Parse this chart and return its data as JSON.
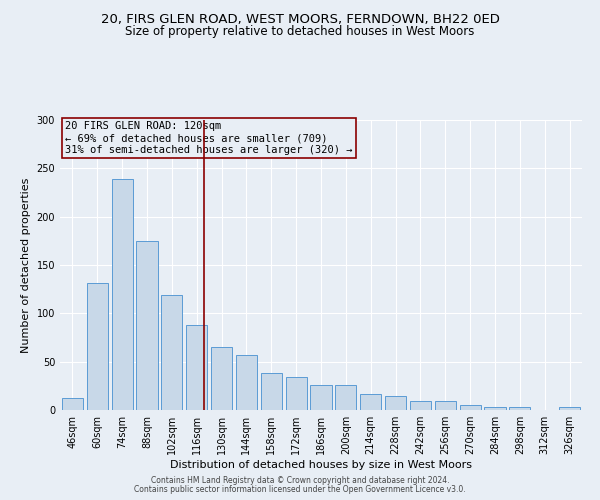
{
  "title": "20, FIRS GLEN ROAD, WEST MOORS, FERNDOWN, BH22 0ED",
  "subtitle": "Size of property relative to detached houses in West Moors",
  "xlabel": "Distribution of detached houses by size in West Moors",
  "ylabel": "Number of detached properties",
  "bar_labels": [
    "46sqm",
    "60sqm",
    "74sqm",
    "88sqm",
    "102sqm",
    "116sqm",
    "130sqm",
    "144sqm",
    "158sqm",
    "172sqm",
    "186sqm",
    "200sqm",
    "214sqm",
    "228sqm",
    "242sqm",
    "256sqm",
    "270sqm",
    "284sqm",
    "298sqm",
    "312sqm",
    "326sqm"
  ],
  "bar_values": [
    12,
    131,
    239,
    175,
    119,
    88,
    65,
    57,
    38,
    34,
    26,
    26,
    17,
    15,
    9,
    9,
    5,
    3,
    3,
    0,
    3
  ],
  "bar_color": "#c8d8e8",
  "bar_edge_color": "#5b9bd5",
  "vline_color": "#8b0000",
  "annotation_text": "20 FIRS GLEN ROAD: 120sqm\n← 69% of detached houses are smaller (709)\n31% of semi-detached houses are larger (320) →",
  "annotation_box_color": "#8b0000",
  "ylim": [
    0,
    300
  ],
  "background_color": "#e8eef5",
  "footer_line1": "Contains HM Land Registry data © Crown copyright and database right 2024.",
  "footer_line2": "Contains public sector information licensed under the Open Government Licence v3.0.",
  "title_fontsize": 9.5,
  "subtitle_fontsize": 8.5,
  "tick_fontsize": 7,
  "ylabel_fontsize": 8,
  "xlabel_fontsize": 8,
  "annotation_fontsize": 7.5,
  "footer_fontsize": 5.5
}
